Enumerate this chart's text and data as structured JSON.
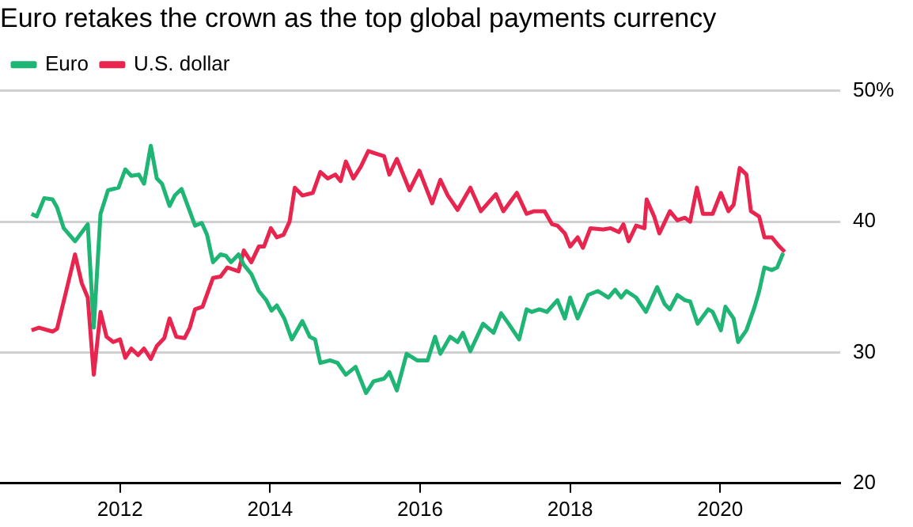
{
  "chart_data": {
    "type": "line",
    "title": "Euro retakes the crown as the top global payments currency",
    "xlim": [
      2010.4,
      2021.6
    ],
    "xticks": [
      2012,
      2014,
      2016,
      2018,
      2020
    ],
    "ylim": [
      20,
      50
    ],
    "yticks": [
      20,
      30,
      40,
      {
        "value": 50,
        "label": "50%"
      }
    ],
    "grid": "y",
    "legend": "top left",
    "marker": "none",
    "line_style": "solid",
    "series": [
      {
        "name": "Euro",
        "color": "#1fb574",
        "x": [
          2010.82,
          2010.89,
          2010.99,
          2011.1,
          2011.16,
          2011.25,
          2011.4,
          2011.57,
          2011.65,
          2011.74,
          2011.84,
          2011.98,
          2012.07,
          2012.15,
          2012.25,
          2012.32,
          2012.41,
          2012.49,
          2012.56,
          2012.66,
          2012.73,
          2012.82,
          2012.91,
          2013.0,
          2013.09,
          2013.16,
          2013.24,
          2013.34,
          2013.41,
          2013.48,
          2013.58,
          2013.65,
          2013.75,
          2013.85,
          2013.95,
          2014.02,
          2014.09,
          2014.19,
          2014.29,
          2014.43,
          2014.53,
          2014.6,
          2014.67,
          2014.8,
          2014.9,
          2015.01,
          2015.14,
          2015.28,
          2015.38,
          2015.52,
          2015.59,
          2015.69,
          2015.82,
          2015.96,
          2016.1,
          2016.2,
          2016.27,
          2016.4,
          2016.5,
          2016.57,
          2016.67,
          2016.84,
          2016.98,
          2017.08,
          2017.18,
          2017.32,
          2017.42,
          2017.49,
          2017.59,
          2017.69,
          2017.83,
          2017.93,
          2018.0,
          2018.1,
          2018.24,
          2018.37,
          2018.51,
          2018.6,
          2018.68,
          2018.75,
          2018.88,
          2019.01,
          2019.16,
          2019.26,
          2019.33,
          2019.43,
          2019.53,
          2019.6,
          2019.7,
          2019.84,
          2019.9,
          2020.01,
          2020.07,
          2020.18,
          2020.24,
          2020.35,
          2020.46,
          2020.52,
          2020.59,
          2020.69,
          2020.76,
          2020.84
        ],
        "values": [
          40.6,
          40.4,
          41.8,
          41.7,
          41.1,
          39.5,
          38.5,
          39.8,
          31.9,
          40.6,
          42.4,
          42.6,
          44.0,
          43.5,
          43.6,
          42.9,
          45.8,
          43.3,
          42.9,
          41.2,
          42.0,
          42.5,
          41.1,
          39.7,
          39.9,
          39.0,
          36.9,
          37.5,
          37.4,
          36.9,
          37.5,
          36.7,
          36.0,
          34.7,
          34.0,
          33.2,
          33.6,
          32.6,
          31.0,
          32.4,
          31.2,
          31.0,
          29.2,
          29.4,
          29.2,
          28.3,
          28.9,
          26.9,
          27.8,
          28.0,
          28.5,
          27.1,
          29.9,
          29.4,
          29.4,
          31.2,
          29.9,
          31.2,
          30.8,
          31.5,
          30.1,
          32.2,
          31.5,
          33.0,
          32.2,
          31.0,
          33.3,
          33.1,
          33.3,
          33.1,
          34.0,
          32.6,
          34.2,
          32.6,
          34.4,
          34.7,
          34.2,
          34.8,
          34.2,
          34.7,
          34.2,
          33.1,
          35.0,
          33.7,
          33.3,
          34.4,
          34.0,
          33.9,
          32.2,
          33.3,
          33.1,
          31.7,
          33.5,
          32.6,
          30.8,
          31.7,
          33.5,
          34.7,
          36.5,
          36.3,
          36.5,
          37.6
        ]
      },
      {
        "name": "U.S. dollar",
        "color": "#e8254f",
        "x": [
          2010.82,
          2010.92,
          2011.1,
          2011.16,
          2011.27,
          2011.4,
          2011.49,
          2011.57,
          2011.65,
          2011.74,
          2011.82,
          2011.91,
          2012.0,
          2012.07,
          2012.15,
          2012.24,
          2012.32,
          2012.41,
          2012.49,
          2012.59,
          2012.66,
          2012.75,
          2012.86,
          2012.93,
          2013.0,
          2013.1,
          2013.24,
          2013.34,
          2013.43,
          2013.58,
          2013.65,
          2013.75,
          2013.85,
          2013.92,
          2014.01,
          2014.09,
          2014.18,
          2014.26,
          2014.33,
          2014.43,
          2014.57,
          2014.67,
          2014.77,
          2014.87,
          2014.94,
          2015.01,
          2015.11,
          2015.21,
          2015.31,
          2015.41,
          2015.52,
          2015.59,
          2015.69,
          2015.86,
          2015.99,
          2016.16,
          2016.27,
          2016.37,
          2016.5,
          2016.67,
          2016.81,
          2017.01,
          2017.11,
          2017.29,
          2017.42,
          2017.52,
          2017.66,
          2017.76,
          2017.83,
          2017.93,
          2018.0,
          2018.1,
          2018.17,
          2018.27,
          2018.44,
          2018.54,
          2018.65,
          2018.71,
          2018.78,
          2018.88,
          2018.99,
          2019.02,
          2019.12,
          2019.19,
          2019.33,
          2019.43,
          2019.53,
          2019.6,
          2019.69,
          2019.77,
          2019.9,
          2020.01,
          2020.11,
          2020.18,
          2020.26,
          2020.35,
          2020.41,
          2020.52,
          2020.59,
          2020.69,
          2020.79,
          2020.86
        ],
        "values": [
          31.7,
          31.9,
          31.6,
          31.8,
          34.4,
          37.5,
          35.3,
          34.2,
          28.3,
          33.1,
          31.2,
          30.8,
          31.0,
          29.6,
          30.3,
          29.8,
          30.3,
          29.5,
          30.5,
          31.1,
          32.6,
          31.2,
          31.1,
          31.9,
          33.3,
          33.5,
          35.7,
          35.8,
          36.5,
          36.2,
          37.8,
          36.9,
          38.1,
          38.1,
          39.5,
          38.8,
          39.0,
          40.0,
          42.6,
          42.0,
          42.2,
          43.8,
          43.3,
          43.6,
          43.1,
          44.6,
          43.3,
          44.2,
          45.4,
          45.2,
          45.0,
          43.6,
          44.8,
          42.4,
          43.9,
          41.4,
          43.2,
          42.0,
          40.9,
          42.6,
          40.8,
          42.1,
          40.8,
          42.2,
          40.6,
          40.8,
          40.8,
          39.8,
          39.7,
          39.1,
          38.1,
          38.8,
          38.0,
          39.5,
          39.4,
          39.5,
          39.2,
          39.8,
          38.5,
          39.7,
          39.5,
          41.7,
          40.4,
          39.1,
          40.8,
          40.1,
          40.3,
          40.0,
          42.6,
          40.6,
          40.6,
          42.2,
          40.8,
          41.3,
          44.1,
          43.6,
          40.8,
          40.4,
          38.8,
          38.8,
          38.1,
          37.7
        ]
      }
    ]
  }
}
